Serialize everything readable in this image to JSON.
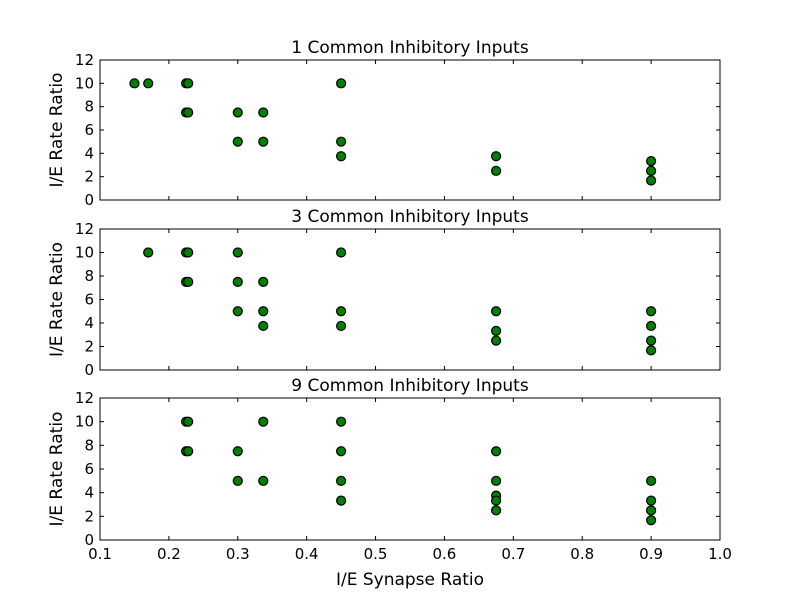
{
  "chart_data": [
    {
      "type": "scatter",
      "title": "1 Common Inhibitory Inputs",
      "xlabel": "",
      "ylabel": "I/E Rate Ratio",
      "xlim": [
        0.1,
        1.0
      ],
      "ylim": [
        0,
        12
      ],
      "xticks": [],
      "yticks": [
        "0",
        "2",
        "4",
        "6",
        "8",
        "10",
        "12"
      ],
      "marker_color": "#008000",
      "points": [
        [
          0.15,
          10
        ],
        [
          0.17,
          10
        ],
        [
          0.225,
          10
        ],
        [
          0.228,
          10
        ],
        [
          0.225,
          7.5
        ],
        [
          0.228,
          7.5
        ],
        [
          0.3,
          7.5
        ],
        [
          0.3,
          5
        ],
        [
          0.337,
          7.5
        ],
        [
          0.337,
          5
        ],
        [
          0.45,
          10
        ],
        [
          0.45,
          5
        ],
        [
          0.45,
          3.75
        ],
        [
          0.675,
          3.75
        ],
        [
          0.675,
          2.5
        ],
        [
          0.9,
          3.33
        ],
        [
          0.9,
          2.5
        ],
        [
          0.9,
          1.67
        ]
      ]
    },
    {
      "type": "scatter",
      "title": "3 Common Inhibitory Inputs",
      "xlabel": "",
      "ylabel": "I/E Rate Ratio",
      "xlim": [
        0.1,
        1.0
      ],
      "ylim": [
        0,
        12
      ],
      "xticks": [],
      "yticks": [
        "0",
        "2",
        "4",
        "6",
        "8",
        "10",
        "12"
      ],
      "marker_color": "#008000",
      "points": [
        [
          0.17,
          10
        ],
        [
          0.225,
          10
        ],
        [
          0.228,
          10
        ],
        [
          0.225,
          7.5
        ],
        [
          0.228,
          7.5
        ],
        [
          0.3,
          10
        ],
        [
          0.3,
          7.5
        ],
        [
          0.3,
          5
        ],
        [
          0.337,
          7.5
        ],
        [
          0.337,
          5
        ],
        [
          0.337,
          3.75
        ],
        [
          0.45,
          10
        ],
        [
          0.45,
          5
        ],
        [
          0.45,
          3.75
        ],
        [
          0.675,
          5
        ],
        [
          0.675,
          3.33
        ],
        [
          0.675,
          2.5
        ],
        [
          0.9,
          5
        ],
        [
          0.9,
          3.75
        ],
        [
          0.9,
          2.5
        ],
        [
          0.9,
          1.67
        ]
      ]
    },
    {
      "type": "scatter",
      "title": "9 Common Inhibitory Inputs",
      "xlabel": "I/E Synapse Ratio",
      "ylabel": "I/E Rate Ratio",
      "xlim": [
        0.1,
        1.0
      ],
      "ylim": [
        0,
        12
      ],
      "xticks": [
        "0.1",
        "0.2",
        "0.3",
        "0.4",
        "0.5",
        "0.6",
        "0.7",
        "0.8",
        "0.9",
        "1.0"
      ],
      "yticks": [
        "0",
        "2",
        "4",
        "6",
        "8",
        "10",
        "12"
      ],
      "marker_color": "#008000",
      "points": [
        [
          0.225,
          10
        ],
        [
          0.228,
          10
        ],
        [
          0.225,
          7.5
        ],
        [
          0.228,
          7.5
        ],
        [
          0.3,
          7.5
        ],
        [
          0.3,
          5
        ],
        [
          0.337,
          10
        ],
        [
          0.337,
          5
        ],
        [
          0.45,
          10
        ],
        [
          0.45,
          7.5
        ],
        [
          0.45,
          5
        ],
        [
          0.45,
          3.33
        ],
        [
          0.675,
          7.5
        ],
        [
          0.675,
          5
        ],
        [
          0.675,
          3.75
        ],
        [
          0.675,
          3.33
        ],
        [
          0.675,
          2.5
        ],
        [
          0.9,
          5
        ],
        [
          0.9,
          3.33
        ],
        [
          0.9,
          2.5
        ],
        [
          0.9,
          1.67
        ]
      ]
    }
  ]
}
